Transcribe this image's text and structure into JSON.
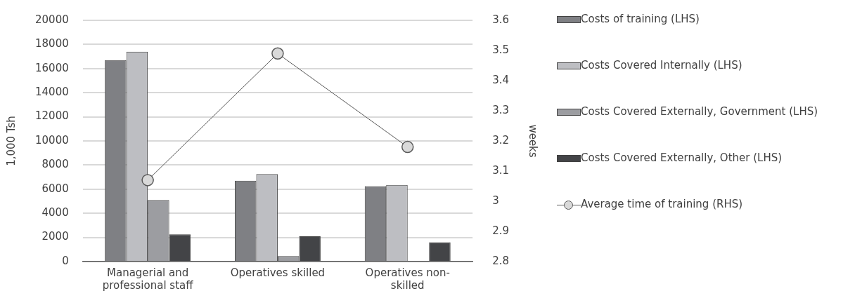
{
  "chart_data": {
    "type": "bar",
    "categories": [
      "Managerial and professional staff",
      "Operatives skilled",
      "Operatives non-skilled"
    ],
    "ylabel": "1,000 Tsh",
    "y2label": "weeks",
    "series": [
      {
        "name": "Costs of training (LHS)",
        "color": "#7f8084",
        "values": [
          16700,
          6700,
          6250
        ]
      },
      {
        "name": "Costs Covered Internally (LHS)",
        "color": "#bdbec2",
        "values": [
          17400,
          7250,
          6350
        ]
      },
      {
        "name": "Costs Covered Externally, Government (LHS)",
        "color": "#9c9da1",
        "values": [
          5100,
          450,
          0
        ]
      },
      {
        "name": "Costs Covered Externally, Other (LHS)",
        "color": "#434447",
        "values": [
          2250,
          2100,
          1600
        ]
      },
      {
        "name": "Average time of training (RHS)",
        "type": "line",
        "axis": "y2",
        "color": "#595959",
        "values": [
          3.07,
          3.49,
          3.18
        ]
      }
    ],
    "ylim": [
      0,
      20000
    ],
    "yticks": [
      0,
      2000,
      4000,
      6000,
      8000,
      10000,
      12000,
      14000,
      16000,
      18000,
      20000
    ],
    "y2lim": [
      2.8,
      3.6
    ],
    "y2ticks": [
      2.8,
      2.9,
      3,
      3.1,
      3.2,
      3.3,
      3.4,
      3.5,
      3.6
    ],
    "grid": "y",
    "legend": "right",
    "marker": "circle"
  }
}
